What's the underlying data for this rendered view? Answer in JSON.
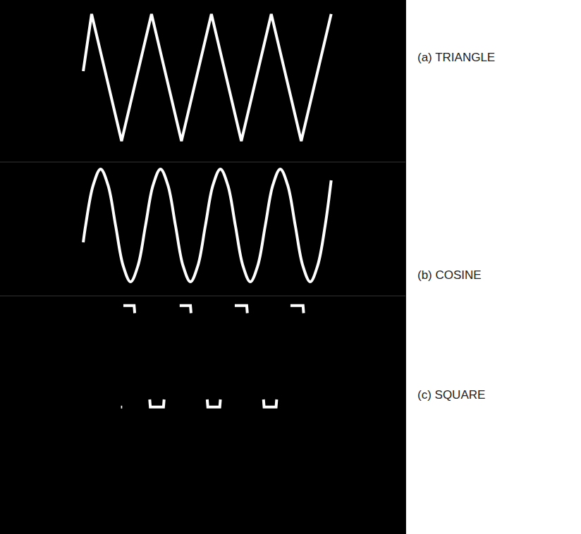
{
  "chart_data": [
    {
      "type": "line",
      "title": "(a) TRIANGLE",
      "color": "#ffffff",
      "line_style": "solid",
      "tick_labels": false,
      "grid": false,
      "xlim": [
        -1.39,
        5.38
      ],
      "ylim": [
        -1.33,
        1.22
      ],
      "x": [
        0,
        0.14,
        0.64,
        1.14,
        1.64,
        2.14,
        2.64,
        3.14,
        3.64,
        4.14
      ],
      "values": [
        0.1,
        1,
        -1,
        1,
        -1,
        1,
        -1,
        1,
        -1,
        1
      ]
    },
    {
      "type": "line",
      "title": "(b) COSINE",
      "color": "#ffffff",
      "line_style": "spline",
      "tick_labels": false,
      "grid": false,
      "xlim": [
        -1.39,
        5.38
      ],
      "ylim": [
        -1.25,
        1.125
      ],
      "x": [
        0,
        0.04,
        0.165,
        0.29,
        0.415,
        0.54,
        0.665,
        0.79,
        0.915,
        1.04,
        1.165,
        1.29,
        1.415,
        1.54,
        1.665,
        1.79,
        1.915,
        2.04,
        2.165,
        2.29,
        2.415,
        2.54,
        2.665,
        2.79,
        2.915,
        3.04,
        3.165,
        3.29,
        3.415,
        3.54,
        3.665,
        3.79,
        3.915,
        4.04,
        4.14
      ],
      "values": [
        -0.3,
        0,
        0.71,
        1,
        0.71,
        0,
        -0.71,
        -1,
        -0.71,
        0,
        0.71,
        1,
        0.71,
        0,
        -0.71,
        -1,
        -0.71,
        0,
        0.71,
        1,
        0.71,
        0,
        -0.71,
        -1,
        -0.71,
        0,
        0.71,
        1,
        0.71,
        0,
        -0.71,
        -1,
        -0.71,
        0,
        0.8
      ]
    },
    {
      "type": "line",
      "title": "(c) SQUARE",
      "color": "#ffffff",
      "line_style": "solid",
      "tick_labels": false,
      "grid": false,
      "xlim": [
        -1.39,
        5.38
      ],
      "ylim": [
        -3.5,
        1.19
      ],
      "x": [
        0.63,
        0.65,
        0.66,
        0.67,
        0.85,
        0.86,
        0.87,
        1.11,
        1.12,
        1.34,
        1.35,
        1.36,
        1.61,
        1.79,
        1.8,
        1.81,
        2.07,
        2.08,
        2.28,
        2.29,
        2.3,
        2.53,
        2.73,
        2.74,
        2.75,
        3.01,
        3.02,
        3.22,
        3.23,
        3.24,
        3.46,
        3.67,
        3.68
      ],
      "values": [
        -1,
        -1,
        null,
        1,
        1,
        0.85,
        null,
        -0.85,
        -1,
        -1,
        -0.85,
        null,
        1,
        1,
        0.85,
        null,
        -0.85,
        -1,
        -1,
        -0.85,
        null,
        1,
        1,
        0.85,
        null,
        -0.85,
        -1,
        -1,
        -0.85,
        null,
        1,
        1,
        0.85
      ]
    }
  ]
}
